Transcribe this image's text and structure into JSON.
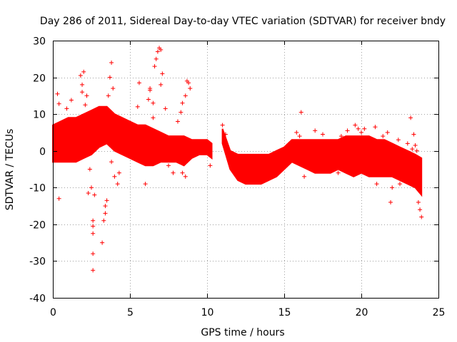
{
  "chart_data": {
    "type": "scatter",
    "title": "Day 286 of 2011, Sidereal Day-to-day VTEC variation (SDTVAR) for receiver bndy",
    "xlabel": "GPS time / hours",
    "ylabel": "SDTVAR / TECUs",
    "xlim": [
      0,
      25
    ],
    "ylim": [
      -40,
      30
    ],
    "xticks": [
      0,
      5,
      10,
      15,
      20,
      25
    ],
    "yticks": [
      -40,
      -30,
      -20,
      -10,
      0,
      10,
      20,
      30
    ],
    "grid": true,
    "marker": "+",
    "color": "#ff0000",
    "band_series": {
      "description": "dense envelope of SDTVAR samples (x in hours, lower/upper in TECU)",
      "x": [
        0.0,
        0.5,
        1.0,
        1.5,
        2.0,
        2.5,
        3.0,
        3.5,
        4.0,
        4.5,
        5.0,
        5.5,
        6.0,
        6.5,
        7.0,
        7.5,
        8.0,
        8.5,
        9.0,
        9.5,
        10.0,
        10.3
      ],
      "lower": [
        -3,
        -3,
        -3,
        -3,
        -2,
        -1,
        1,
        2,
        0,
        -1,
        -2,
        -3,
        -4,
        -4,
        -3,
        -3,
        -3,
        -4,
        -2,
        -1,
        -1,
        -2
      ],
      "upper": [
        7,
        8,
        9,
        9,
        10,
        11,
        12,
        12,
        10,
        9,
        8,
        7,
        7,
        6,
        5,
        4,
        4,
        4,
        3,
        3,
        3,
        2
      ]
    },
    "band_series_2": {
      "x": [
        11.0,
        11.5,
        12.0,
        12.5,
        13.0,
        13.5,
        14.0,
        14.5,
        15.0,
        15.5,
        16.0,
        16.5,
        17.0,
        17.5,
        18.0,
        18.5,
        19.0,
        19.5,
        20.0,
        20.5,
        21.0,
        21.5,
        22.0,
        22.5,
        23.0,
        23.5,
        23.9
      ],
      "lower": [
        2,
        -5,
        -8,
        -9,
        -9,
        -9,
        -8,
        -7,
        -5,
        -3,
        -4,
        -5,
        -6,
        -6,
        -6,
        -5,
        -6,
        -7,
        -6,
        -7,
        -7,
        -7,
        -7,
        -8,
        -9,
        -10,
        -12
      ],
      "upper": [
        6,
        0,
        -1,
        -1,
        -1,
        -1,
        -1,
        0,
        1,
        3,
        3,
        3,
        3,
        3,
        3,
        3,
        4,
        4,
        4,
        4,
        3,
        3,
        2,
        1,
        0,
        -1,
        -2
      ]
    },
    "outliers": [
      [
        0.3,
        15.5
      ],
      [
        0.4,
        12.8
      ],
      [
        0.4,
        -13
      ],
      [
        0.9,
        11.5
      ],
      [
        1.2,
        13.8
      ],
      [
        1.8,
        20.5
      ],
      [
        1.9,
        18
      ],
      [
        2.0,
        21.5
      ],
      [
        1.9,
        16
      ],
      [
        2.1,
        12.5
      ],
      [
        2.2,
        15
      ],
      [
        2.3,
        -11.5
      ],
      [
        2.4,
        -5
      ],
      [
        2.5,
        -10
      ],
      [
        2.6,
        -19
      ],
      [
        2.6,
        -20.5
      ],
      [
        2.6,
        -22.5
      ],
      [
        2.6,
        -28
      ],
      [
        2.6,
        -32.5
      ],
      [
        2.7,
        -12
      ],
      [
        3.2,
        -25
      ],
      [
        3.3,
        -19
      ],
      [
        3.4,
        -17
      ],
      [
        3.4,
        -15
      ],
      [
        3.5,
        -13.5
      ],
      [
        3.6,
        15
      ],
      [
        3.7,
        20
      ],
      [
        3.8,
        24
      ],
      [
        3.9,
        17
      ],
      [
        3.8,
        -3
      ],
      [
        4.0,
        -7
      ],
      [
        4.2,
        -9
      ],
      [
        4.3,
        -6
      ],
      [
        5.5,
        12
      ],
      [
        5.6,
        18.5
      ],
      [
        6.0,
        -9
      ],
      [
        6.2,
        14
      ],
      [
        6.3,
        16.5
      ],
      [
        6.3,
        17
      ],
      [
        6.5,
        9
      ],
      [
        6.5,
        13
      ],
      [
        6.6,
        23
      ],
      [
        6.7,
        25
      ],
      [
        6.8,
        27
      ],
      [
        6.9,
        28
      ],
      [
        7.0,
        27.5
      ],
      [
        7.1,
        21
      ],
      [
        7.0,
        18
      ],
      [
        7.3,
        11.5
      ],
      [
        7.5,
        -4
      ],
      [
        7.8,
        -6
      ],
      [
        8.1,
        8
      ],
      [
        8.3,
        10.5
      ],
      [
        8.4,
        13
      ],
      [
        8.6,
        15
      ],
      [
        8.7,
        19
      ],
      [
        8.8,
        18.5
      ],
      [
        8.9,
        17
      ],
      [
        8.4,
        -6
      ],
      [
        8.6,
        -7
      ],
      [
        10.2,
        -4
      ],
      [
        11.0,
        7
      ],
      [
        11.2,
        4.5
      ],
      [
        16.1,
        10.5
      ],
      [
        15.8,
        5
      ],
      [
        16.0,
        4
      ],
      [
        16.3,
        -7
      ],
      [
        17.0,
        5.5
      ],
      [
        17.5,
        4.5
      ],
      [
        18.5,
        -6
      ],
      [
        18.7,
        4
      ],
      [
        19.1,
        5.5
      ],
      [
        19.6,
        7
      ],
      [
        19.8,
        6
      ],
      [
        20.0,
        5
      ],
      [
        20.2,
        6
      ],
      [
        20.9,
        6.5
      ],
      [
        21.0,
        -9
      ],
      [
        21.4,
        4
      ],
      [
        21.7,
        5
      ],
      [
        21.9,
        -14
      ],
      [
        22.0,
        -10
      ],
      [
        22.4,
        3
      ],
      [
        22.5,
        -9
      ],
      [
        23.0,
        2
      ],
      [
        23.2,
        9
      ],
      [
        23.4,
        4.5
      ],
      [
        23.6,
        0
      ],
      [
        23.7,
        -14
      ],
      [
        23.8,
        -16
      ],
      [
        23.9,
        -18
      ],
      [
        23.5,
        1.5
      ],
      [
        23.3,
        0.5
      ]
    ]
  }
}
